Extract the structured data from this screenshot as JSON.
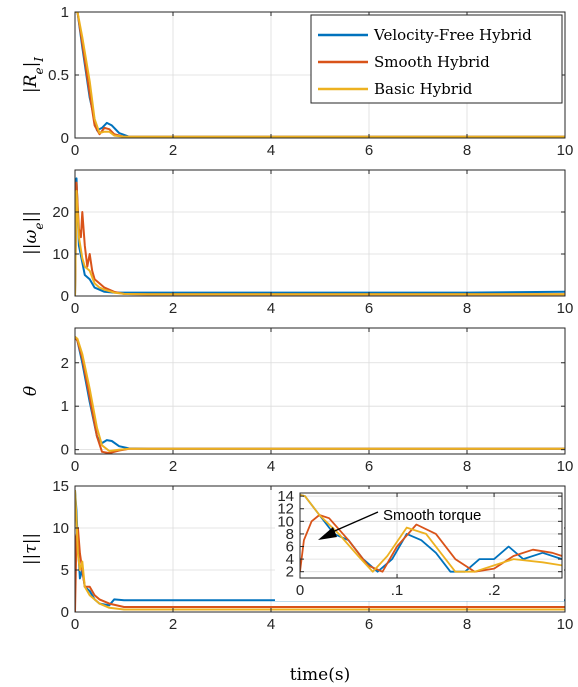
{
  "colors": {
    "velocity_free": "#0072BD",
    "smooth": "#D95319",
    "basic": "#EDB120"
  },
  "chart_data": [
    {
      "type": "line",
      "ylabel": "|R_e|_I",
      "xlim": [
        0,
        10
      ],
      "ylim": [
        0,
        1
      ],
      "xticks": [
        0,
        2,
        4,
        6,
        8,
        10
      ],
      "yticks": [
        0,
        0.5,
        1
      ],
      "grid": true,
      "legend": {
        "placement": "top-right",
        "entries": [
          "Velocity-Free Hybrid",
          "Smooth Hybrid",
          "Basic Hybrid"
        ]
      },
      "series": [
        {
          "name": "Velocity-Free Hybrid",
          "color": "#0072BD",
          "x": [
            0,
            0.05,
            0.15,
            0.3,
            0.45,
            0.55,
            0.65,
            0.75,
            0.9,
            1.1,
            1.5,
            2,
            3,
            4,
            5,
            6,
            7,
            8,
            9,
            10
          ],
          "y": [
            1,
            1,
            0.72,
            0.32,
            0.06,
            0.08,
            0.12,
            0.1,
            0.04,
            0.01,
            0.01,
            0.01,
            0.01,
            0.01,
            0.01,
            0.01,
            0.01,
            0.01,
            0.01,
            0.01
          ]
        },
        {
          "name": "Smooth Hybrid",
          "color": "#D95319",
          "x": [
            0,
            0.05,
            0.15,
            0.3,
            0.4,
            0.5,
            0.6,
            0.7,
            0.8,
            1,
            1.5,
            2,
            4,
            6,
            8,
            10
          ],
          "y": [
            1,
            1,
            0.75,
            0.35,
            0.1,
            0.03,
            0.08,
            0.07,
            0.03,
            0.01,
            0.01,
            0.01,
            0.01,
            0.01,
            0.01,
            0.01
          ]
        },
        {
          "name": "Basic Hybrid",
          "color": "#EDB120",
          "x": [
            0,
            0.05,
            0.15,
            0.3,
            0.4,
            0.5,
            0.6,
            0.7,
            0.8,
            1,
            1.5,
            2,
            4,
            6,
            8,
            10
          ],
          "y": [
            1,
            1,
            0.8,
            0.45,
            0.15,
            0.04,
            0.05,
            0.05,
            0.02,
            0.01,
            0.01,
            0.01,
            0.01,
            0.01,
            0.01,
            0.01
          ]
        }
      ]
    },
    {
      "type": "line",
      "ylabel": "||ω_e||",
      "xlim": [
        0,
        10
      ],
      "ylim": [
        0,
        30
      ],
      "xticks": [
        0,
        2,
        4,
        6,
        8,
        10
      ],
      "yticks": [
        0,
        10,
        20
      ],
      "grid": true,
      "series": [
        {
          "name": "Velocity-Free Hybrid",
          "color": "#0072BD",
          "x": [
            0,
            0.03,
            0.08,
            0.15,
            0.2,
            0.3,
            0.4,
            0.5,
            0.6,
            0.8,
            1,
            1.5,
            2,
            4,
            6,
            8,
            10
          ],
          "y": [
            0,
            28,
            12,
            8,
            5,
            4,
            2,
            1.5,
            1,
            0.8,
            0.8,
            0.8,
            0.8,
            0.8,
            0.8,
            0.8,
            1
          ]
        },
        {
          "name": "Smooth Hybrid",
          "color": "#D95319",
          "x": [
            0,
            0.03,
            0.08,
            0.12,
            0.15,
            0.2,
            0.25,
            0.3,
            0.35,
            0.4,
            0.5,
            0.6,
            0.8,
            1,
            1.5,
            2,
            4,
            6,
            8,
            10
          ],
          "y": [
            0,
            27,
            16,
            14,
            20,
            12,
            7,
            10,
            6,
            4,
            3,
            2,
            1,
            0.5,
            0.4,
            0.4,
            0.4,
            0.4,
            0.4,
            0.4
          ]
        },
        {
          "name": "Basic Hybrid",
          "color": "#EDB120",
          "x": [
            0,
            0.03,
            0.08,
            0.15,
            0.2,
            0.3,
            0.4,
            0.5,
            0.6,
            0.8,
            1,
            1.5,
            2,
            4,
            6,
            8,
            10
          ],
          "y": [
            0,
            25,
            14,
            9,
            7,
            6,
            3,
            2,
            1.5,
            0.8,
            0.5,
            0.4,
            0.4,
            0.4,
            0.4,
            0.4,
            0.4
          ]
        }
      ]
    },
    {
      "type": "line",
      "ylabel": "θ",
      "xlim": [
        0,
        10
      ],
      "ylim": [
        -0.1,
        2.8
      ],
      "xticks": [
        0,
        2,
        4,
        6,
        8,
        10
      ],
      "yticks": [
        0,
        1,
        2
      ],
      "grid": true,
      "series": [
        {
          "name": "Velocity-Free Hybrid",
          "color": "#0072BD",
          "x": [
            0,
            0.05,
            0.15,
            0.3,
            0.45,
            0.55,
            0.65,
            0.75,
            0.9,
            1.1,
            1.5,
            2,
            4,
            6,
            8,
            10
          ],
          "y": [
            2.6,
            2.5,
            2.0,
            1.1,
            0.3,
            0.15,
            0.22,
            0.2,
            0.08,
            0.03,
            0.02,
            0.02,
            0.02,
            0.02,
            0.02,
            0.02
          ]
        },
        {
          "name": "Smooth Hybrid",
          "color": "#D95319",
          "x": [
            0,
            0.05,
            0.15,
            0.3,
            0.45,
            0.55,
            0.7,
            0.9,
            1.1,
            1.5,
            2,
            4,
            6,
            8,
            10
          ],
          "y": [
            2.6,
            2.5,
            2.1,
            1.2,
            0.3,
            -0.05,
            -0.08,
            -0.02,
            0.02,
            0.02,
            0.02,
            0.02,
            0.02,
            0.02,
            0.02
          ]
        },
        {
          "name": "Basic Hybrid",
          "color": "#EDB120",
          "x": [
            0,
            0.05,
            0.15,
            0.3,
            0.45,
            0.55,
            0.7,
            0.9,
            1.1,
            1.5,
            2,
            4,
            6,
            8,
            10
          ],
          "y": [
            2.6,
            2.55,
            2.2,
            1.4,
            0.5,
            0.1,
            -0.03,
            0.0,
            0.02,
            0.02,
            0.02,
            0.02,
            0.02,
            0.02,
            0.02
          ]
        }
      ]
    },
    {
      "type": "line",
      "ylabel": "||τ||",
      "xlabel": "time(s)",
      "xlim": [
        0,
        10
      ],
      "ylim": [
        0,
        15
      ],
      "xticks": [
        0,
        2,
        4,
        6,
        8,
        10
      ],
      "yticks": [
        0,
        5,
        10,
        15
      ],
      "grid": true,
      "series": [
        {
          "name": "Velocity-Free Hybrid",
          "color": "#0072BD",
          "x": [
            0,
            0.03,
            0.06,
            0.1,
            0.15,
            0.2,
            0.3,
            0.4,
            0.5,
            0.7,
            0.8,
            1,
            2,
            4,
            6,
            8,
            10
          ],
          "y": [
            14.5,
            12,
            8,
            4,
            5,
            3,
            2.5,
            1.5,
            1,
            0.8,
            1.5,
            1.4,
            1.4,
            1.4,
            1.4,
            1.4,
            1.4
          ]
        },
        {
          "name": "Smooth Hybrid",
          "color": "#D95319",
          "x": [
            0,
            0.03,
            0.06,
            0.1,
            0.15,
            0.2,
            0.3,
            0.4,
            0.5,
            0.7,
            1,
            2,
            4,
            6,
            8,
            10
          ],
          "y": [
            0,
            9,
            10,
            7,
            5,
            3,
            3,
            2,
            1.5,
            1,
            0.6,
            0.6,
            0.6,
            0.6,
            0.6,
            0.6
          ]
        },
        {
          "name": "Basic Hybrid",
          "color": "#EDB120",
          "x": [
            0,
            0.03,
            0.06,
            0.1,
            0.15,
            0.2,
            0.3,
            0.4,
            0.5,
            0.7,
            1,
            2,
            4,
            6,
            8,
            10
          ],
          "y": [
            14.5,
            11,
            7,
            5,
            6,
            3,
            2,
            1.5,
            1,
            0.5,
            0.3,
            0.3,
            0.3,
            0.3,
            0.3,
            0.3
          ]
        }
      ]
    },
    {
      "type": "line",
      "xlim": [
        0,
        0.27
      ],
      "ylim": [
        1,
        14.5
      ],
      "xticks": [
        0,
        0.1,
        0.2
      ],
      "yticks": [
        2,
        4,
        6,
        8,
        10,
        12,
        14
      ],
      "grid": true,
      "annotation": "Smooth torque",
      "series": [
        {
          "name": "Velocity-Free Hybrid",
          "color": "#0072BD",
          "x": [
            0,
            0.005,
            0.02,
            0.035,
            0.05,
            0.065,
            0.08,
            0.095,
            0.11,
            0.125,
            0.14,
            0.155,
            0.17,
            0.185,
            0.2,
            0.215,
            0.23,
            0.25,
            0.27
          ],
          "y": [
            14.2,
            14,
            11,
            8,
            7,
            4,
            2,
            4,
            8,
            7,
            5,
            2,
            2,
            4,
            4,
            6,
            4,
            5,
            4
          ]
        },
        {
          "name": "Smooth Hybrid",
          "color": "#D95319",
          "x": [
            0,
            0.004,
            0.012,
            0.02,
            0.03,
            0.05,
            0.07,
            0.085,
            0.1,
            0.12,
            0.14,
            0.16,
            0.18,
            0.2,
            0.22,
            0.24,
            0.26,
            0.27
          ],
          "y": [
            2,
            7,
            10,
            11,
            10.5,
            7,
            3,
            2,
            6,
            9.5,
            8,
            4,
            2,
            2.5,
            4.5,
            5.5,
            5,
            4.5
          ]
        },
        {
          "name": "Basic Hybrid",
          "color": "#EDB120",
          "x": [
            0,
            0.005,
            0.02,
            0.04,
            0.06,
            0.075,
            0.09,
            0.11,
            0.13,
            0.145,
            0.16,
            0.18,
            0.2,
            0.22,
            0.25,
            0.27
          ],
          "y": [
            14.2,
            14,
            11,
            8,
            4.5,
            2,
            4.5,
            9,
            8,
            5,
            2,
            2,
            3,
            4,
            3.5,
            3
          ]
        }
      ]
    }
  ]
}
